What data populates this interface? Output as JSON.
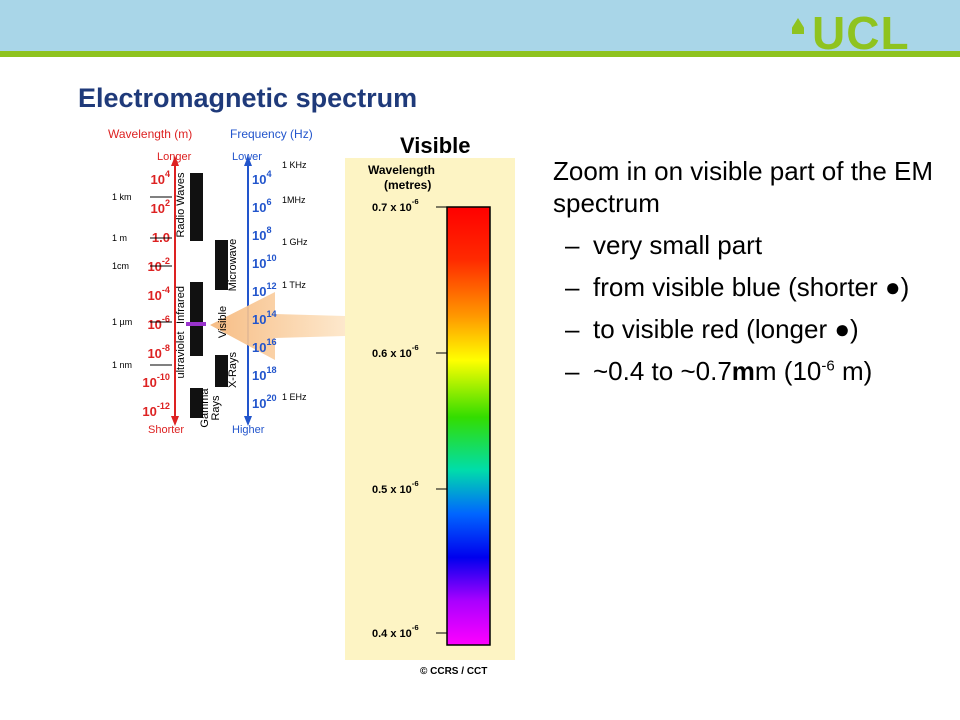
{
  "header": {
    "logo": "UCL",
    "title": "Electromagnetic spectrum"
  },
  "figure": {
    "wavelength_heading": "Wavelength (m)",
    "frequency_heading": "Frequency (Hz)",
    "longer": "Longer",
    "lower": "Lower",
    "shorter": "Shorter",
    "higher": "Higher",
    "wavelengths": [
      {
        "base": "10",
        "exp": "4"
      },
      {
        "base": "10",
        "exp": "2"
      },
      {
        "base": "1.0"
      },
      {
        "base": "10",
        "exp": "-2"
      },
      {
        "base": "10",
        "exp": "-4"
      },
      {
        "base": "10",
        "exp": "-6"
      },
      {
        "base": "10",
        "exp": "-8"
      },
      {
        "base": "10",
        "exp": "-10"
      },
      {
        "base": "10",
        "exp": "-12"
      }
    ],
    "length_units": [
      "1 km",
      "1 m",
      "1cm",
      "1 µm",
      "1 nm"
    ],
    "frequencies": [
      {
        "base": "10",
        "exp": "4"
      },
      {
        "base": "10",
        "exp": "6"
      },
      {
        "base": "10",
        "exp": "8"
      },
      {
        "base": "10",
        "exp": "10"
      },
      {
        "base": "10",
        "exp": "12"
      },
      {
        "base": "10",
        "exp": "14"
      },
      {
        "base": "10",
        "exp": "16"
      },
      {
        "base": "10",
        "exp": "18"
      },
      {
        "base": "10",
        "exp": "20"
      }
    ],
    "frequency_units": [
      "1 KHz",
      "1MHz",
      "1 GHz",
      "1 THz",
      "1 EHz"
    ],
    "bands": [
      "Radio Waves",
      "Microwave",
      "Infrared",
      "ultraviolet",
      "Visible",
      "X-Rays",
      "Gamma",
      "Rays"
    ],
    "visible": {
      "title": "Visible",
      "axis_label": [
        "Wavelength",
        "(metres)"
      ],
      "ticks": [
        {
          "base": "0.7 x 10",
          "exp": "-6"
        },
        {
          "base": "0.6 x 10",
          "exp": "-6"
        },
        {
          "base": "0.5 x 10",
          "exp": "-6"
        },
        {
          "base": "0.4 x 10",
          "exp": "-6"
        }
      ]
    },
    "credit": "© CCRS / CCT"
  },
  "bullets": {
    "main": "Zoom in on visible part of the EM spectrum",
    "marker": "–",
    "items": [
      "very small part",
      "from visible blue (shorter ●)",
      "to visible red (longer ●)"
    ],
    "last_item": {
      "prefix": "~0.4 to ~0.7",
      "symbol": "m",
      "middle": "m (10",
      "exp": "-6",
      "suffix": "m)"
    }
  }
}
